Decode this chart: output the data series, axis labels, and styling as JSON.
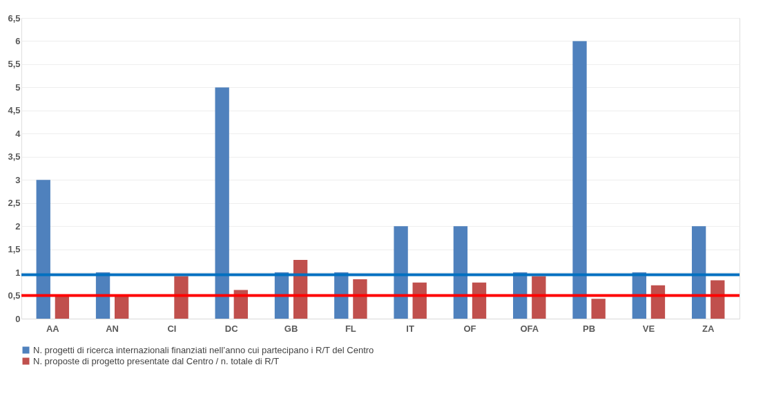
{
  "chart_data": {
    "type": "bar",
    "categories": [
      "AA",
      "AN",
      "CI",
      "DC",
      "GB",
      "FL",
      "IT",
      "OF",
      "OFA",
      "PB",
      "VE",
      "ZA"
    ],
    "series": [
      {
        "name": "N. progetti di ricerca internazionali finanziati nell’anno cui partecipano i R/T del Centro",
        "color": "#4f81bd",
        "values": [
          3,
          1,
          null,
          5,
          1,
          1,
          2,
          2,
          1,
          6,
          1,
          2
        ]
      },
      {
        "name": "N. proposte di progetto presentate dal Centro / n. totale di R/T",
        "color": "#c0504d",
        "values": [
          0.5,
          0.5,
          0.92,
          0.62,
          1.27,
          0.85,
          0.78,
          0.78,
          0.92,
          0.43,
          0.72,
          0.83
        ]
      }
    ],
    "ylim": [
      0,
      6.5
    ],
    "yticks": [
      0,
      {
        "value": 0.5,
        "label": "0,5"
      },
      1,
      {
        "value": 1.5,
        "label": "1,5"
      },
      2,
      {
        "value": 2.5,
        "label": "2,5"
      },
      3,
      {
        "value": 3.5,
        "label": "3,5"
      },
      4,
      {
        "value": 4.5,
        "label": "4,5"
      },
      5,
      {
        "value": 5.5,
        "label": "5,5"
      },
      6,
      {
        "value": 6.5,
        "label": "6,5"
      }
    ],
    "ref_lines": [
      {
        "axis": "y",
        "value": 0.95,
        "color": "#0070c0"
      },
      {
        "axis": "y",
        "value": 0.5,
        "color": "#ff0000"
      }
    ],
    "grid": "y",
    "legend": "bottom"
  }
}
